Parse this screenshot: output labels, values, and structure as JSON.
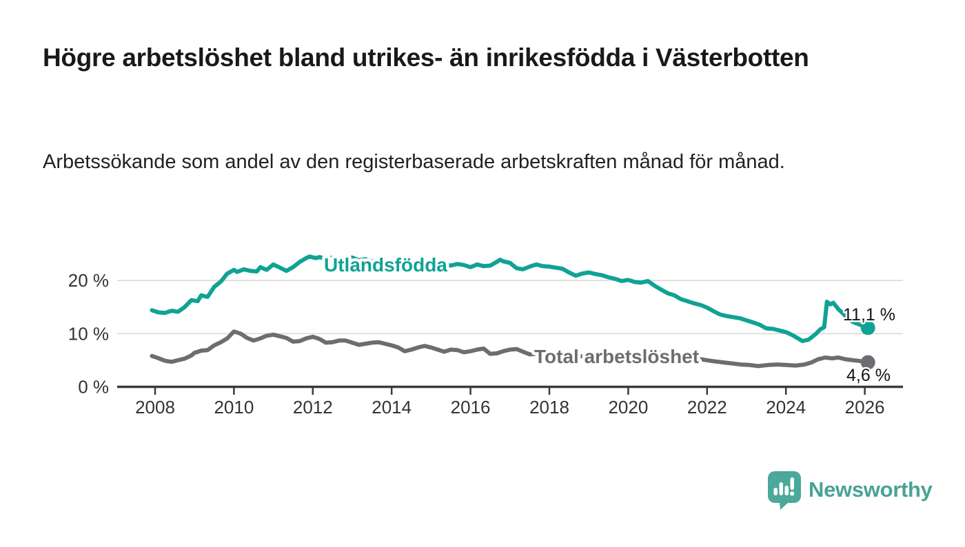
{
  "title": "Högre arbetslöshet bland utrikes- än inrikesfödda i Västerbotten",
  "subtitle": "Arbetssökande som andel av den registerbaserade arbetskraften månad för månad.",
  "branding": {
    "logo_text": "Newsworthy",
    "logo_color": "#4aa296"
  },
  "chart_data": {
    "type": "line",
    "title": "Högre arbetslöshet bland utrikes- än inrikesfödda i Västerbotten",
    "subtitle": "Arbetssökande som andel av den registerbaserade arbetskraften månad för månad.",
    "xlabel": "",
    "ylabel": "",
    "grid": "horizontal-gridlines",
    "legend": "inline-series-labels",
    "x_axis": {
      "tick_values": [
        2008,
        2010,
        2012,
        2014,
        2016,
        2018,
        2020,
        2022,
        2024,
        2026
      ],
      "tick_labels": [
        "2008",
        "2010",
        "2012",
        "2014",
        "2016",
        "2018",
        "2020",
        "2022",
        "2024",
        "2026"
      ],
      "range": [
        2007.9,
        2027.0
      ]
    },
    "y_axis": {
      "tick_values": [
        0,
        10,
        20
      ],
      "tick_labels": [
        "0 %",
        "10 %",
        "20 %"
      ],
      "range": [
        0,
        26
      ],
      "unit": "%"
    },
    "colors": {
      "utlandsfodda": "#10a294",
      "total": "#6d6d71",
      "gridline": "#d9d9d9",
      "axis": "#3b3b3b",
      "tick_text": "#333333",
      "value_text": "#141414"
    },
    "series": [
      {
        "id": "utlandsfodda",
        "name": "Utlandsfödda",
        "color": "#10a294",
        "end_label": "11,1 %",
        "end_value": 11.1,
        "points": [
          [
            2007.92,
            14.4
          ],
          [
            2008.08,
            14.0
          ],
          [
            2008.25,
            13.9
          ],
          [
            2008.42,
            14.3
          ],
          [
            2008.58,
            14.1
          ],
          [
            2008.75,
            15.0
          ],
          [
            2008.92,
            16.3
          ],
          [
            2009.08,
            16.1
          ],
          [
            2009.17,
            17.2
          ],
          [
            2009.33,
            16.9
          ],
          [
            2009.5,
            18.8
          ],
          [
            2009.67,
            19.8
          ],
          [
            2009.83,
            21.3
          ],
          [
            2010.0,
            22.0
          ],
          [
            2010.08,
            21.6
          ],
          [
            2010.25,
            22.1
          ],
          [
            2010.42,
            21.8
          ],
          [
            2010.58,
            21.7
          ],
          [
            2010.67,
            22.5
          ],
          [
            2010.83,
            22.0
          ],
          [
            2011.0,
            23.0
          ],
          [
            2011.17,
            22.4
          ],
          [
            2011.33,
            21.8
          ],
          [
            2011.5,
            22.5
          ],
          [
            2011.67,
            23.5
          ],
          [
            2011.83,
            24.2
          ],
          [
            2011.92,
            24.5
          ],
          [
            2012.08,
            24.2
          ],
          [
            2012.17,
            24.4
          ],
          [
            2012.33,
            24.0
          ],
          [
            2012.5,
            24.3
          ],
          [
            2012.67,
            23.9
          ],
          [
            2012.83,
            24.1
          ],
          [
            2013.0,
            24.3
          ],
          [
            2013.17,
            23.8
          ],
          [
            2013.33,
            24.0
          ],
          [
            2013.5,
            23.6
          ],
          [
            2013.67,
            23.8
          ],
          [
            2013.83,
            23.3
          ],
          [
            2014.0,
            23.6
          ],
          [
            2014.17,
            23.2
          ],
          [
            2014.33,
            23.5
          ],
          [
            2014.5,
            23.1
          ],
          [
            2014.67,
            23.3
          ],
          [
            2014.83,
            22.9
          ],
          [
            2015.0,
            23.2
          ],
          [
            2015.17,
            22.7
          ],
          [
            2015.33,
            23.0
          ],
          [
            2015.5,
            22.8
          ],
          [
            2015.67,
            23.1
          ],
          [
            2015.83,
            22.9
          ],
          [
            2016.0,
            22.5
          ],
          [
            2016.17,
            23.0
          ],
          [
            2016.33,
            22.7
          ],
          [
            2016.5,
            22.8
          ],
          [
            2016.67,
            23.5
          ],
          [
            2016.75,
            23.9
          ],
          [
            2016.83,
            23.6
          ],
          [
            2017.0,
            23.3
          ],
          [
            2017.17,
            22.3
          ],
          [
            2017.33,
            22.1
          ],
          [
            2017.5,
            22.6
          ],
          [
            2017.67,
            23.0
          ],
          [
            2017.83,
            22.7
          ],
          [
            2018.0,
            22.6
          ],
          [
            2018.17,
            22.4
          ],
          [
            2018.33,
            22.2
          ],
          [
            2018.5,
            21.5
          ],
          [
            2018.67,
            20.9
          ],
          [
            2018.83,
            21.3
          ],
          [
            2019.0,
            21.5
          ],
          [
            2019.17,
            21.2
          ],
          [
            2019.33,
            21.0
          ],
          [
            2019.5,
            20.6
          ],
          [
            2019.67,
            20.3
          ],
          [
            2019.83,
            19.9
          ],
          [
            2020.0,
            20.1
          ],
          [
            2020.17,
            19.7
          ],
          [
            2020.33,
            19.6
          ],
          [
            2020.5,
            19.9
          ],
          [
            2020.67,
            19.0
          ],
          [
            2020.83,
            18.3
          ],
          [
            2021.0,
            17.6
          ],
          [
            2021.17,
            17.2
          ],
          [
            2021.33,
            16.5
          ],
          [
            2021.5,
            16.1
          ],
          [
            2021.67,
            15.7
          ],
          [
            2021.83,
            15.4
          ],
          [
            2022.0,
            14.9
          ],
          [
            2022.17,
            14.2
          ],
          [
            2022.33,
            13.6
          ],
          [
            2022.5,
            13.3
          ],
          [
            2022.67,
            13.1
          ],
          [
            2022.83,
            12.9
          ],
          [
            2023.0,
            12.5
          ],
          [
            2023.17,
            12.1
          ],
          [
            2023.33,
            11.7
          ],
          [
            2023.5,
            11.0
          ],
          [
            2023.67,
            10.9
          ],
          [
            2023.83,
            10.6
          ],
          [
            2024.0,
            10.3
          ],
          [
            2024.17,
            9.7
          ],
          [
            2024.33,
            9.0
          ],
          [
            2024.42,
            8.6
          ],
          [
            2024.58,
            8.9
          ],
          [
            2024.75,
            9.9
          ],
          [
            2024.87,
            10.8
          ],
          [
            2024.97,
            11.2
          ],
          [
            2025.04,
            16.0
          ],
          [
            2025.12,
            15.5
          ],
          [
            2025.2,
            15.8
          ],
          [
            2025.33,
            14.6
          ],
          [
            2025.45,
            13.8
          ],
          [
            2025.58,
            12.8
          ],
          [
            2025.7,
            12.2
          ],
          [
            2025.83,
            11.8
          ],
          [
            2025.95,
            11.5
          ],
          [
            2026.08,
            11.1
          ]
        ]
      },
      {
        "id": "total-arbetsloshet",
        "name": "Total arbetslöshet",
        "color": "#6d6d71",
        "end_label": "4,6 %",
        "end_value": 4.6,
        "points": [
          [
            2007.92,
            5.8
          ],
          [
            2008.08,
            5.4
          ],
          [
            2008.25,
            4.9
          ],
          [
            2008.42,
            4.7
          ],
          [
            2008.58,
            5.0
          ],
          [
            2008.75,
            5.3
          ],
          [
            2008.92,
            5.9
          ],
          [
            2009.0,
            6.4
          ],
          [
            2009.17,
            6.8
          ],
          [
            2009.33,
            6.9
          ],
          [
            2009.5,
            7.8
          ],
          [
            2009.67,
            8.4
          ],
          [
            2009.83,
            9.1
          ],
          [
            2010.0,
            10.4
          ],
          [
            2010.17,
            10.0
          ],
          [
            2010.33,
            9.2
          ],
          [
            2010.5,
            8.7
          ],
          [
            2010.67,
            9.1
          ],
          [
            2010.83,
            9.6
          ],
          [
            2011.0,
            9.8
          ],
          [
            2011.17,
            9.5
          ],
          [
            2011.33,
            9.2
          ],
          [
            2011.5,
            8.5
          ],
          [
            2011.67,
            8.6
          ],
          [
            2011.83,
            9.1
          ],
          [
            2012.0,
            9.4
          ],
          [
            2012.17,
            9.0
          ],
          [
            2012.33,
            8.3
          ],
          [
            2012.5,
            8.4
          ],
          [
            2012.67,
            8.7
          ],
          [
            2012.83,
            8.7
          ],
          [
            2013.0,
            8.3
          ],
          [
            2013.17,
            7.9
          ],
          [
            2013.33,
            8.1
          ],
          [
            2013.5,
            8.3
          ],
          [
            2013.67,
            8.4
          ],
          [
            2013.83,
            8.1
          ],
          [
            2014.0,
            7.8
          ],
          [
            2014.17,
            7.4
          ],
          [
            2014.33,
            6.7
          ],
          [
            2014.5,
            7.0
          ],
          [
            2014.67,
            7.4
          ],
          [
            2014.83,
            7.7
          ],
          [
            2015.0,
            7.4
          ],
          [
            2015.17,
            7.0
          ],
          [
            2015.33,
            6.6
          ],
          [
            2015.5,
            7.0
          ],
          [
            2015.67,
            6.9
          ],
          [
            2015.83,
            6.5
          ],
          [
            2016.0,
            6.7
          ],
          [
            2016.17,
            7.0
          ],
          [
            2016.33,
            7.2
          ],
          [
            2016.5,
            6.2
          ],
          [
            2016.67,
            6.3
          ],
          [
            2016.83,
            6.7
          ],
          [
            2017.0,
            7.0
          ],
          [
            2017.17,
            7.1
          ],
          [
            2017.33,
            6.6
          ],
          [
            2017.5,
            6.1
          ],
          [
            2017.67,
            6.2
          ],
          [
            2017.83,
            6.1
          ],
          [
            2018.0,
            6.0
          ],
          [
            2018.25,
            5.8
          ],
          [
            2018.5,
            5.6
          ],
          [
            2018.75,
            5.7
          ],
          [
            2019.0,
            5.8
          ],
          [
            2019.25,
            5.6
          ],
          [
            2019.5,
            5.5
          ],
          [
            2019.75,
            5.6
          ],
          [
            2020.0,
            5.8
          ],
          [
            2020.25,
            6.3
          ],
          [
            2020.5,
            6.6
          ],
          [
            2020.75,
            6.5
          ],
          [
            2021.0,
            6.2
          ],
          [
            2021.25,
            5.9
          ],
          [
            2021.5,
            5.6
          ],
          [
            2021.75,
            5.3
          ],
          [
            2022.0,
            5.0
          ],
          [
            2022.17,
            4.8
          ],
          [
            2022.4,
            4.6
          ],
          [
            2022.63,
            4.4
          ],
          [
            2022.86,
            4.2
          ],
          [
            2023.08,
            4.1
          ],
          [
            2023.3,
            3.9
          ],
          [
            2023.55,
            4.1
          ],
          [
            2023.78,
            4.2
          ],
          [
            2024.0,
            4.1
          ],
          [
            2024.25,
            4.0
          ],
          [
            2024.47,
            4.2
          ],
          [
            2024.65,
            4.6
          ],
          [
            2024.82,
            5.2
          ],
          [
            2025.0,
            5.5
          ],
          [
            2025.17,
            5.35
          ],
          [
            2025.33,
            5.5
          ],
          [
            2025.5,
            5.2
          ],
          [
            2025.7,
            5.0
          ],
          [
            2025.83,
            4.9
          ],
          [
            2026.08,
            4.6
          ]
        ]
      }
    ]
  }
}
